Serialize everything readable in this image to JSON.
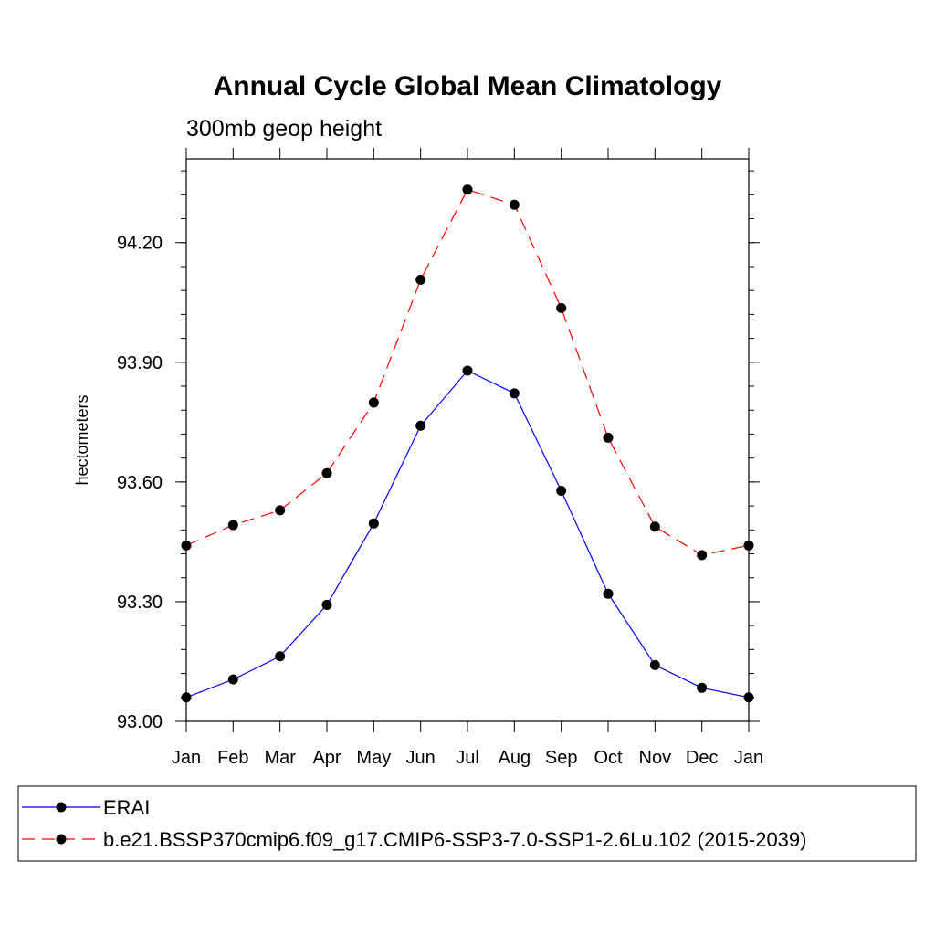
{
  "chart_data": {
    "type": "line",
    "title": "Annual Cycle Global Mean Climatology",
    "subtitle": "300mb geop height",
    "xlabel": "",
    "ylabel": "hectometers",
    "categories": [
      "Jan",
      "Feb",
      "Mar",
      "Apr",
      "May",
      "Jun",
      "Jul",
      "Aug",
      "Sep",
      "Oct",
      "Nov",
      "Dec",
      "Jan"
    ],
    "ylim": [
      93.0,
      94.41
    ],
    "yticks": [
      "93.00",
      "93.30",
      "93.60",
      "93.90",
      "94.20"
    ],
    "grid": false,
    "legend_placement": "bottom",
    "series": [
      {
        "name": "ERAI",
        "color": "#0000ff",
        "dash": "solid",
        "values": [
          93.06,
          93.105,
          93.163,
          93.292,
          93.496,
          93.741,
          93.879,
          93.822,
          93.578,
          93.32,
          93.141,
          93.084,
          93.06
        ]
      },
      {
        "name": "b.e21.BSSP370cmip6.f09_g17.CMIP6-SSP3-7.0-SSP1-2.6Lu.102 (2015-2039)",
        "color": "#ff0000",
        "dash": "dashed",
        "values": [
          93.441,
          93.492,
          93.529,
          93.622,
          93.799,
          94.107,
          94.333,
          94.295,
          94.036,
          93.711,
          93.488,
          93.417,
          93.441
        ]
      }
    ]
  }
}
